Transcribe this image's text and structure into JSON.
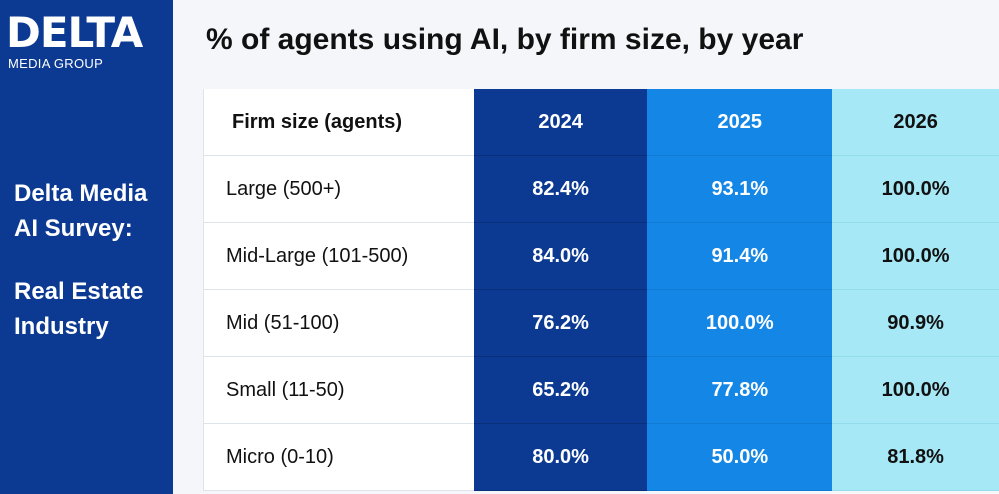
{
  "brand": {
    "name": "DELTA",
    "tagline": "MEDIA GROUP",
    "side_title": "Delta Media AI Survey:",
    "side_subtitle": "Real Estate Industry"
  },
  "colors": {
    "sidebar": "#0c3a92",
    "col_2024": "#0c3a92",
    "col_2025": "#1486e6",
    "col_2026": "#a6e8f5"
  },
  "chart_data": {
    "type": "table",
    "title": "% of agents using AI, by firm size, by year",
    "row_header": "Firm size (agents)",
    "columns": [
      "2024",
      "2025",
      "2026"
    ],
    "rows": [
      {
        "label": "Large (500+)",
        "values": [
          "82.4%",
          "93.1%",
          "100.0%"
        ]
      },
      {
        "label": "Mid-Large (101-500)",
        "values": [
          "84.0%",
          "91.4%",
          "100.0%"
        ]
      },
      {
        "label": "Mid (51-100)",
        "values": [
          "76.2%",
          "100.0%",
          "90.9%"
        ]
      },
      {
        "label": "Small (11-50)",
        "values": [
          "65.2%",
          "77.8%",
          "100.0%"
        ]
      },
      {
        "label": "Micro (0-10)",
        "values": [
          "80.0%",
          "50.0%",
          "81.8%"
        ]
      }
    ]
  }
}
